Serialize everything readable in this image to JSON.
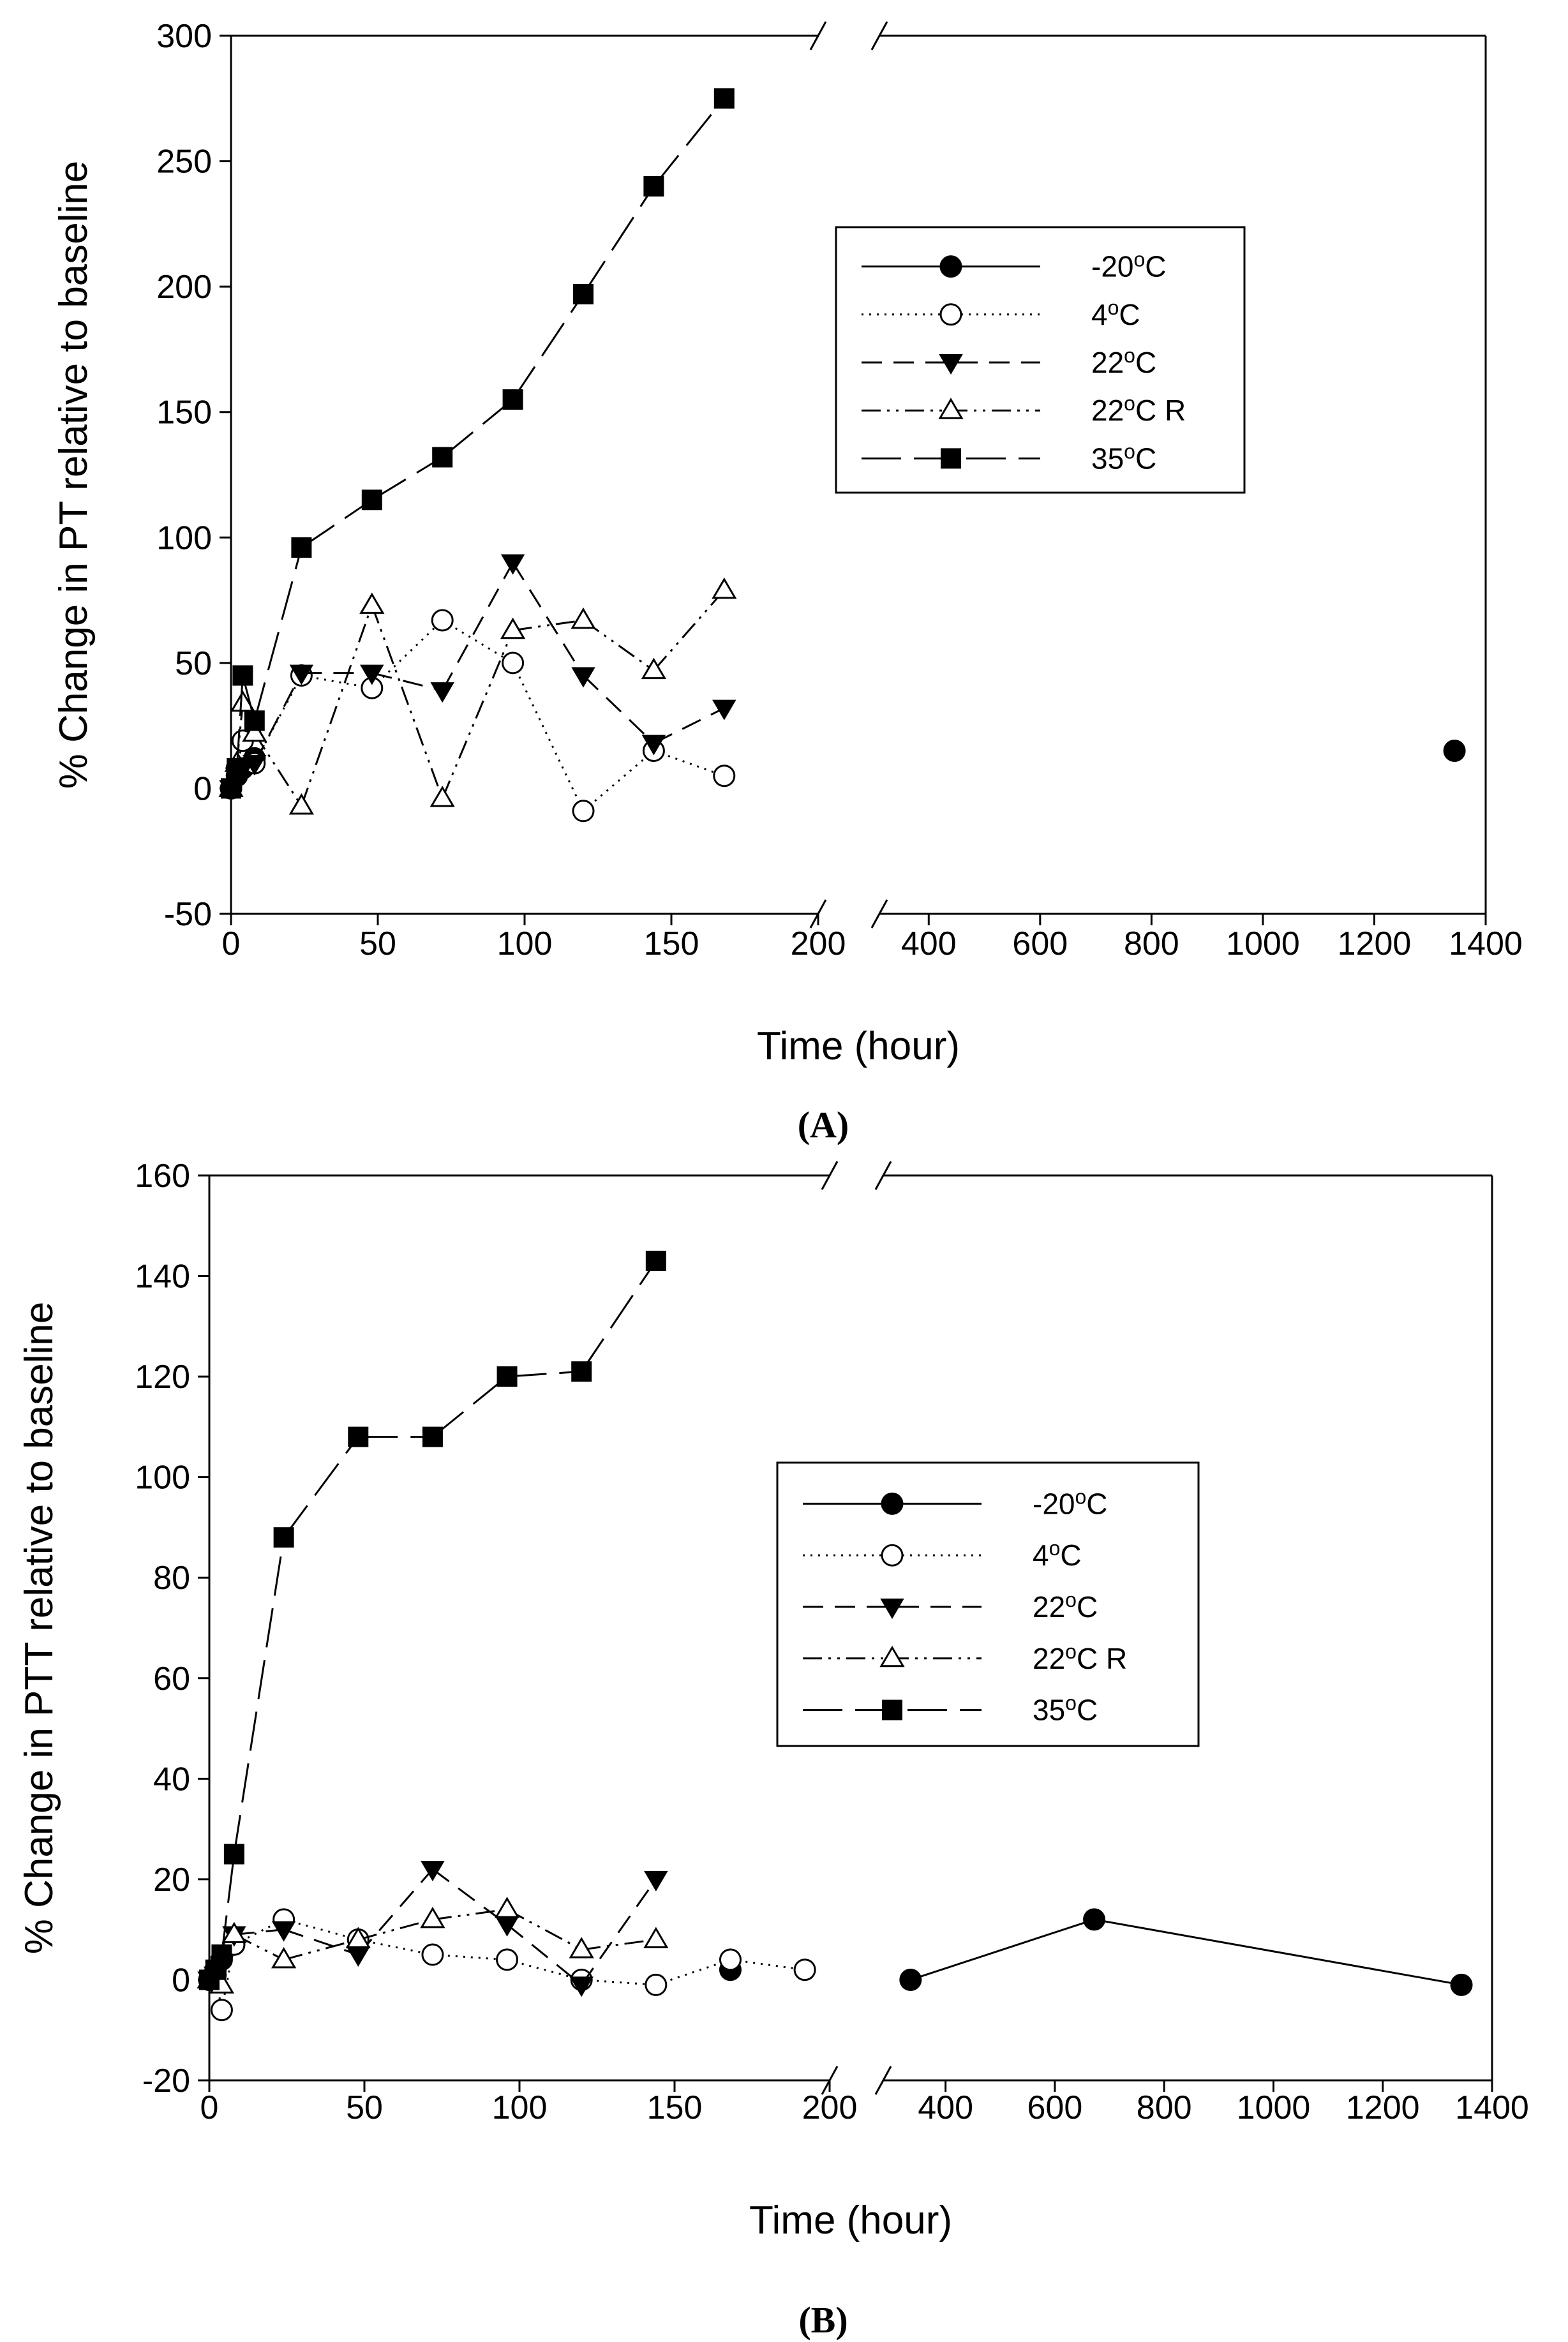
{
  "figure": {
    "panel_labels": [
      "(A)",
      "(B)"
    ]
  },
  "chart_data": [
    {
      "type": "line",
      "panel": "(A)",
      "xlabel": "Time (hour)",
      "ylabel": "% Change in PT relative to baseline",
      "ylim": [
        -50,
        300
      ],
      "yticks": [
        -50,
        0,
        50,
        100,
        150,
        200,
        250,
        300
      ],
      "x_axis_break": true,
      "x_segment1": {
        "xlim": [
          0,
          200
        ],
        "ticks": [
          0,
          50,
          100,
          150,
          200
        ]
      },
      "x_segment2": {
        "xlim": [
          300,
          1400
        ],
        "ticks": [
          400,
          600,
          800,
          1000,
          1200,
          1400
        ]
      },
      "legend": {
        "location": "upper-right"
      },
      "series": [
        {
          "name": "-20°C",
          "label_base": "-20",
          "label_suffix": "",
          "marker": "filled-circle",
          "line": "solid",
          "x": [
            0,
            2,
            4,
            8,
            1344
          ],
          "y": [
            0,
            5,
            8,
            12,
            15
          ],
          "connect": [
            true,
            true,
            true,
            false
          ]
        },
        {
          "name": "4°C",
          "label_base": "4",
          "label_suffix": "",
          "marker": "open-circle",
          "line": "dotted",
          "x": [
            0,
            2,
            4,
            8,
            24,
            48,
            72,
            96,
            120,
            144,
            168
          ],
          "y": [
            0,
            8,
            19,
            10,
            45,
            40,
            67,
            50,
            -9,
            15,
            5
          ]
        },
        {
          "name": "22°C",
          "label_base": "22",
          "label_suffix": "",
          "marker": "filled-triangle-down",
          "line": "dashed",
          "x": [
            0,
            2,
            4,
            8,
            24,
            48,
            72,
            96,
            120,
            144,
            168
          ],
          "y": [
            0,
            5,
            8,
            10,
            46,
            46,
            39,
            90,
            45,
            18,
            32
          ]
        },
        {
          "name": "22°C R",
          "label_base": "22",
          "label_suffix": " R",
          "marker": "open-triangle-up",
          "line": "dash-dot-dot",
          "x": [
            0,
            2,
            4,
            8,
            24,
            48,
            72,
            96,
            120,
            144,
            168
          ],
          "y": [
            0,
            10,
            34,
            22,
            -7,
            73,
            -4,
            63,
            67,
            47,
            79
          ]
        },
        {
          "name": "35°C",
          "label_base": "35",
          "label_suffix": "",
          "marker": "filled-square",
          "line": "long-dash",
          "x": [
            0,
            2,
            4,
            8,
            24,
            48,
            72,
            96,
            120,
            144,
            168
          ],
          "y": [
            0,
            8,
            45,
            27,
            96,
            115,
            132,
            155,
            197,
            240,
            275
          ]
        }
      ]
    },
    {
      "type": "line",
      "panel": "(B)",
      "xlabel": "Time (hour)",
      "ylabel": "% Change in PTT relative to baseline",
      "ylim": [
        -20,
        160
      ],
      "yticks": [
        -20,
        0,
        20,
        40,
        60,
        80,
        100,
        120,
        140,
        160
      ],
      "x_axis_break": true,
      "x_segment1": {
        "xlim": [
          0,
          200
        ],
        "ticks": [
          0,
          50,
          100,
          150,
          200
        ]
      },
      "x_segment2": {
        "xlim": [
          300,
          1400
        ],
        "ticks": [
          400,
          600,
          800,
          1000,
          1200,
          1400
        ]
      },
      "legend": {
        "location": "center-right"
      },
      "series": [
        {
          "name": "-20°C",
          "label_base": "-20",
          "label_suffix": "",
          "marker": "filled-circle",
          "line": "solid",
          "x": [
            0,
            2,
            4,
            8,
            168,
            336,
            672,
            1344
          ],
          "y": [
            0,
            2,
            4,
            7,
            2,
            0,
            12,
            -1
          ],
          "connect": [
            true,
            true,
            true,
            false,
            false,
            true,
            true
          ]
        },
        {
          "name": "4°C",
          "label_base": "4",
          "label_suffix": "",
          "marker": "open-circle",
          "line": "dotted",
          "x": [
            0,
            2,
            4,
            8,
            24,
            48,
            72,
            96,
            120,
            144,
            168,
            192
          ],
          "y": [
            0,
            1,
            -6,
            7,
            12,
            8,
            5,
            4,
            0,
            -1,
            4,
            2
          ]
        },
        {
          "name": "22°C",
          "label_base": "22",
          "label_suffix": "",
          "marker": "filled-triangle-down",
          "line": "dashed",
          "x": [
            0,
            2,
            4,
            8,
            24,
            48,
            72,
            96,
            120,
            144
          ],
          "y": [
            0,
            1,
            3,
            9,
            10,
            5,
            22,
            11,
            -1,
            20
          ]
        },
        {
          "name": "22°C R",
          "label_base": "22",
          "label_suffix": " R",
          "marker": "open-triangle-up",
          "line": "dash-dot-dot",
          "x": [
            0,
            2,
            4,
            8,
            24,
            48,
            72,
            96,
            120,
            144
          ],
          "y": [
            0,
            1,
            -1,
            9,
            4,
            8,
            12,
            14,
            6,
            8
          ]
        },
        {
          "name": "35°C",
          "label_base": "35",
          "label_suffix": "",
          "marker": "filled-square",
          "line": "long-dash",
          "x": [
            0,
            2,
            4,
            8,
            24,
            48,
            72,
            96,
            120,
            144
          ],
          "y": [
            0,
            2,
            5,
            25,
            88,
            108,
            108,
            120,
            121,
            143
          ]
        }
      ]
    }
  ]
}
